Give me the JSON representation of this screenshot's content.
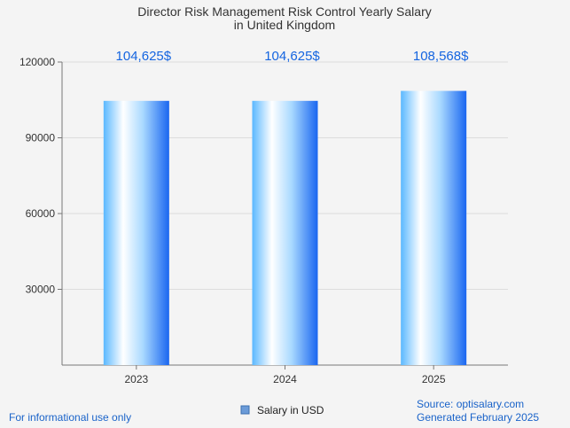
{
  "chart_data": {
    "type": "bar",
    "title_lines": [
      "Director Risk Management Risk Control Yearly Salary",
      "in United Kingdom"
    ],
    "categories": [
      "2023",
      "2024",
      "2025"
    ],
    "series": [
      {
        "name": "Salary in USD",
        "values": [
          104625,
          104625,
          108568
        ],
        "value_labels": [
          "104,625$",
          "104,625$",
          "108,568$"
        ]
      }
    ],
    "y_ticks": [
      "30000",
      "60000",
      "90000",
      "120000"
    ],
    "ylim": [
      0,
      120000
    ],
    "grid": true,
    "legend": "bottom-center",
    "colors": {
      "bar_light": "#ffffff",
      "bar_mid": "#9fdcff",
      "bar_dark": "#1a6df5",
      "label": "#1565e0",
      "grid": "#dddddd",
      "axis": "#777777"
    }
  },
  "footer": {
    "note": "For informational use only",
    "source": "Source: optisalary.com",
    "generated": "Generated February 2025"
  }
}
